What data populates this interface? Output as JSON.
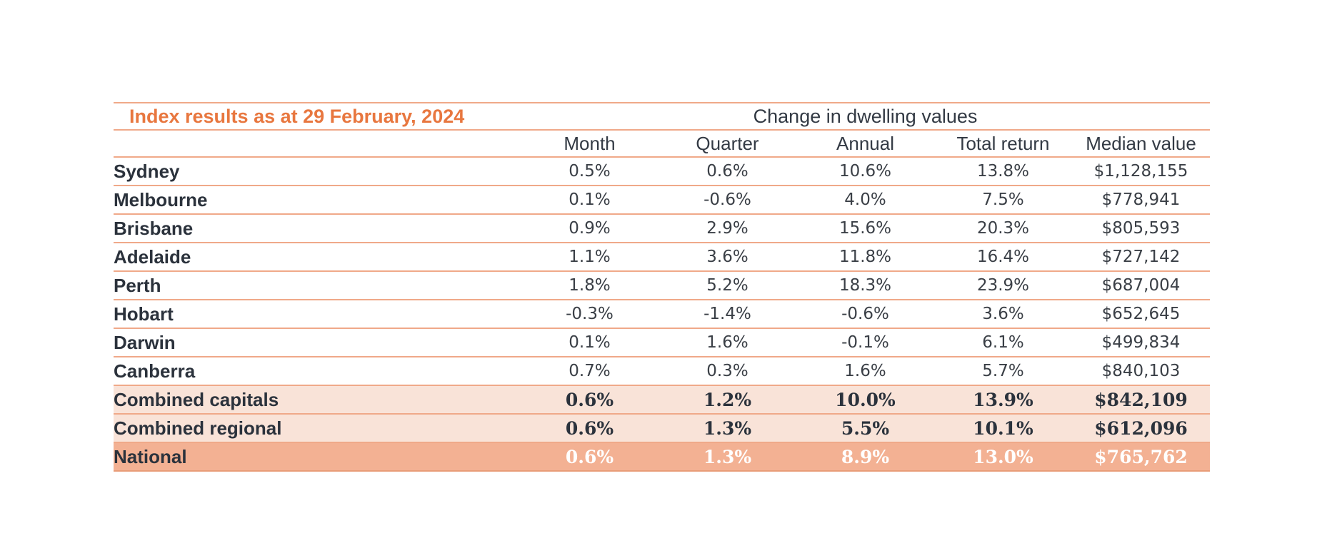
{
  "chart_data": {
    "type": "table",
    "title": "Index results as at 29 February, 2024",
    "group_header": "Change in dwelling values",
    "columns": [
      "Month",
      "Quarter",
      "Annual",
      "Total return",
      "Median value"
    ],
    "rows": [
      {
        "label": "Sydney",
        "values": [
          "0.5%",
          "0.6%",
          "10.6%",
          "13.8%",
          "$1,128,155"
        ]
      },
      {
        "label": "Melbourne",
        "values": [
          "0.1%",
          "-0.6%",
          "4.0%",
          "7.5%",
          "$778,941"
        ]
      },
      {
        "label": "Brisbane",
        "values": [
          "0.9%",
          "2.9%",
          "15.6%",
          "20.3%",
          "$805,593"
        ]
      },
      {
        "label": "Adelaide",
        "values": [
          "1.1%",
          "3.6%",
          "11.8%",
          "16.4%",
          "$727,142"
        ]
      },
      {
        "label": "Perth",
        "values": [
          "1.8%",
          "5.2%",
          "18.3%",
          "23.9%",
          "$687,004"
        ]
      },
      {
        "label": "Hobart",
        "values": [
          "-0.3%",
          "-1.4%",
          "-0.6%",
          "3.6%",
          "$652,645"
        ]
      },
      {
        "label": "Darwin",
        "values": [
          "0.1%",
          "1.6%",
          "-0.1%",
          "6.1%",
          "$499,834"
        ]
      },
      {
        "label": "Canberra",
        "values": [
          "0.7%",
          "0.3%",
          "1.6%",
          "5.7%",
          "$840,103"
        ]
      },
      {
        "label": "Combined capitals",
        "values": [
          "0.6%",
          "1.2%",
          "10.0%",
          "13.9%",
          "$842,109"
        ],
        "style": "combined"
      },
      {
        "label": "Combined regional",
        "values": [
          "0.6%",
          "1.3%",
          "5.5%",
          "10.1%",
          "$612,096"
        ],
        "style": "combined"
      },
      {
        "label": "National",
        "values": [
          "0.6%",
          "1.3%",
          "8.9%",
          "13.0%",
          "$765,762"
        ],
        "style": "national"
      }
    ],
    "colors": {
      "title": "#e8773f",
      "rule": "#f0a989",
      "combined_fill": "#f9e3d8",
      "national_fill": "#f3b193",
      "national_text": "#ffffff",
      "label_text": "#2b323c"
    }
  }
}
